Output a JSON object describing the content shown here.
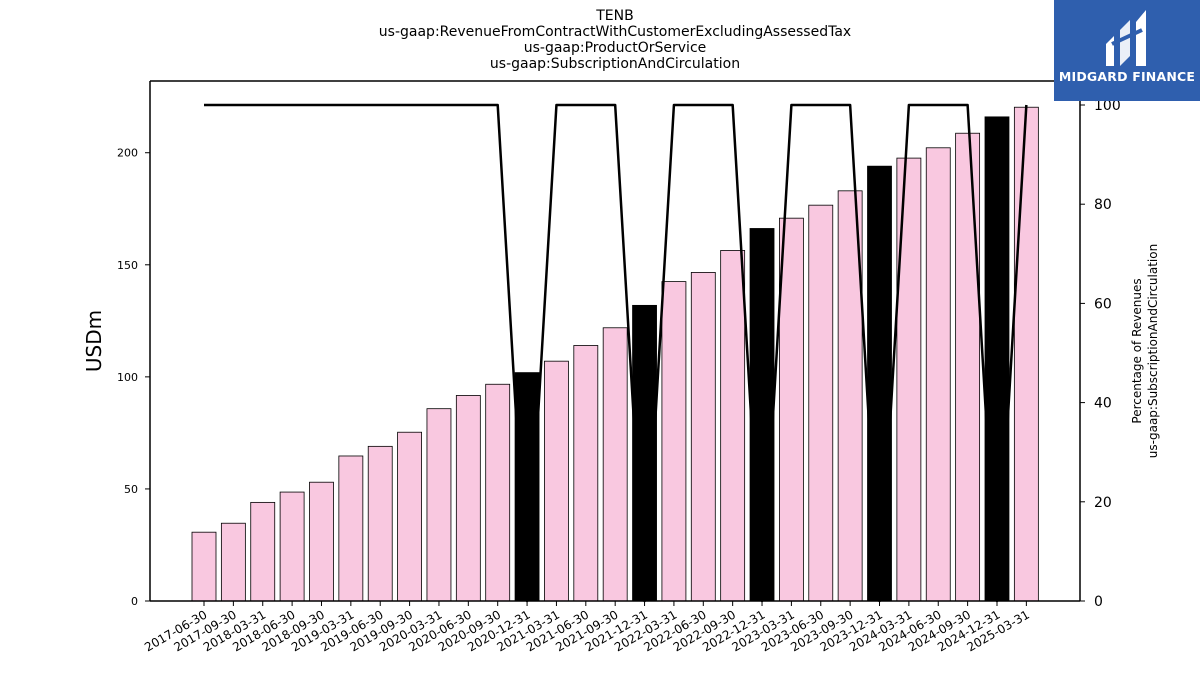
{
  "titles": [
    "TENB",
    "us-gaap:RevenueFromContractWithCustomerExcludingAssessedTax",
    "us-gaap:ProductOrService",
    "us-gaap:SubscriptionAndCirculation"
  ],
  "logo": {
    "text": "MIDGARD FINANCE",
    "bg_color": "#2f5fae"
  },
  "chart_data": {
    "type": "bar",
    "ylabel": "USDm",
    "y2label_lines": [
      "Percentage of Revenues",
      "us-gaap:SubscriptionAndCirculation"
    ],
    "ylim": [
      0,
      232
    ],
    "y_ticks": [
      0,
      50,
      100,
      150,
      200
    ],
    "y2lim": [
      0,
      100.0
    ],
    "y2_ticks": [
      0,
      20,
      40,
      60,
      80,
      100
    ],
    "colors": {
      "quarter_bar": "#f9c8e0",
      "annual_bar": "#000000",
      "line": "#000000"
    },
    "categories": [
      "2017-06-30",
      "2017-09-30",
      "2018-03-31",
      "2018-06-30",
      "2018-09-30",
      "2019-03-31",
      "2019-06-30",
      "2019-09-30",
      "2020-03-31",
      "2020-06-30",
      "2020-09-30",
      "2020-12-31",
      "2021-03-31",
      "2021-06-30",
      "2021-09-30",
      "2021-12-31",
      "2022-03-31",
      "2022-06-30",
      "2022-09-30",
      "2022-12-31",
      "2023-03-31",
      "2023-06-30",
      "2023-09-30",
      "2023-12-31",
      "2024-03-31",
      "2024-06-30",
      "2024-09-30",
      "2024-12-31",
      "2025-03-31"
    ],
    "series": [
      {
        "type": "bar",
        "values": [
          30.7,
          34.7,
          44.0,
          48.6,
          53.0,
          64.7,
          69.0,
          75.3,
          85.8,
          91.7,
          96.7,
          101.9,
          107.0,
          114.0,
          121.9,
          131.9,
          142.5,
          146.6,
          156.4,
          166.2,
          170.8,
          176.6,
          183.0,
          194.0,
          197.6,
          202.2,
          208.7,
          216.0,
          220.3
        ],
        "highlight": [
          false,
          false,
          false,
          false,
          false,
          false,
          false,
          false,
          false,
          false,
          false,
          true,
          false,
          false,
          false,
          true,
          false,
          false,
          false,
          true,
          false,
          false,
          false,
          true,
          false,
          false,
          false,
          true,
          false
        ]
      },
      {
        "type": "line",
        "axis": "right",
        "values": [
          100,
          100,
          100,
          100,
          100,
          100,
          100,
          100,
          100,
          100,
          100,
          0,
          100,
          100,
          100,
          0,
          100,
          100,
          100,
          0,
          100,
          100,
          100,
          0,
          100,
          100,
          100,
          0,
          100
        ]
      }
    ]
  }
}
